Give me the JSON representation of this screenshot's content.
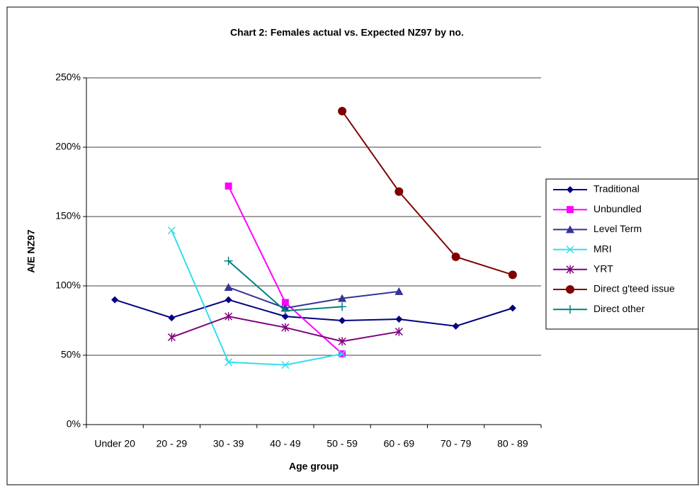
{
  "chart_data": {
    "type": "line",
    "title": "Chart 2: Females actual vs. Expected NZ97 by no.",
    "x_label": "Age group",
    "y_label": "A/E NZ97",
    "categories": [
      "Under 20",
      "20 - 29",
      "30 - 39",
      "40 - 49",
      "50 - 59",
      "60 - 69",
      "70 - 79",
      "80 - 89"
    ],
    "ylim": [
      0,
      250
    ],
    "yticks": [
      {
        "value": 0,
        "label": "0%"
      },
      {
        "value": 50,
        "label": "50%"
      },
      {
        "value": 100,
        "label": "100%"
      },
      {
        "value": 150,
        "label": "150%"
      },
      {
        "value": 200,
        "label": "200%"
      },
      {
        "value": 250,
        "label": "250%"
      }
    ],
    "grid": true,
    "legend": "right",
    "series": [
      {
        "name": "Traditional",
        "color": "#000080",
        "marker": "diamond",
        "values": [
          90,
          77,
          90,
          78,
          75,
          76,
          71,
          84
        ]
      },
      {
        "name": "Unbundled",
        "color": "#ff00ff",
        "marker": "square",
        "values": [
          null,
          null,
          172,
          88,
          51,
          null,
          null,
          null
        ]
      },
      {
        "name": "Level Term",
        "color": "#333399",
        "marker": "triangle",
        "values": [
          null,
          null,
          99,
          84,
          91,
          96,
          null,
          null
        ]
      },
      {
        "name": "MRI",
        "color": "#33ddee",
        "marker": "x",
        "values": [
          null,
          140,
          45,
          43,
          51,
          null,
          null,
          null
        ]
      },
      {
        "name": "YRT",
        "color": "#800080",
        "marker": "star",
        "values": [
          null,
          63,
          78,
          70,
          60,
          67,
          null,
          null
        ]
      },
      {
        "name": "Direct g'teed issue",
        "color": "#800000",
        "marker": "circle",
        "values": [
          null,
          null,
          null,
          null,
          226,
          168,
          121,
          108
        ]
      },
      {
        "name": "Direct other",
        "color": "#008080",
        "marker": "plus",
        "values": [
          null,
          null,
          118,
          82,
          85,
          null,
          null,
          null
        ]
      }
    ]
  }
}
